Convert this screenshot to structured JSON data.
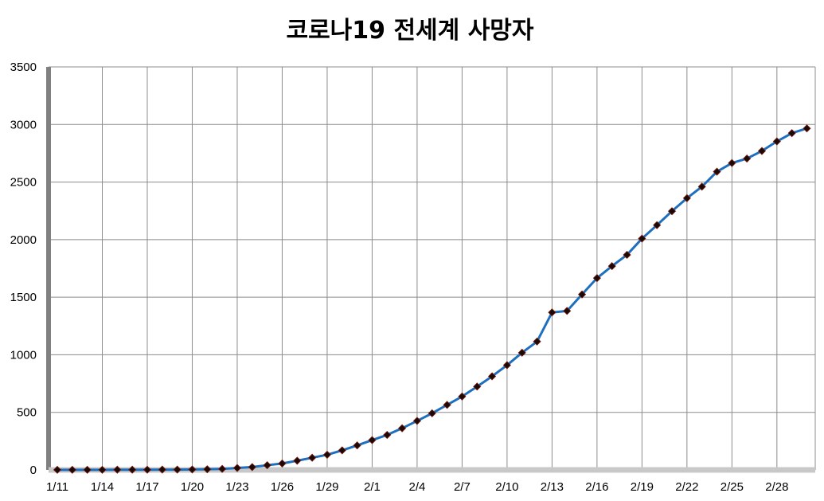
{
  "chart_data": {
    "type": "line",
    "title": "코로나19 전세계 사망자",
    "xlabel": "",
    "ylabel": "",
    "ylim": [
      0,
      3500
    ],
    "yticks": [
      "0",
      "500",
      "1000",
      "1500",
      "2000",
      "2500",
      "3000",
      "3500"
    ],
    "xtick_labels": [
      "1/11",
      "1/14",
      "1/17",
      "1/20",
      "1/23",
      "1/26",
      "1/29",
      "2/1",
      "2/4",
      "2/7",
      "2/10",
      "2/13",
      "2/16",
      "2/19",
      "2/22",
      "2/25",
      "2/28"
    ],
    "grid": true,
    "legend": "none",
    "x": [
      "1/11",
      "1/12",
      "1/13",
      "1/14",
      "1/15",
      "1/16",
      "1/17",
      "1/18",
      "1/19",
      "1/20",
      "1/21",
      "1/22",
      "1/23",
      "1/24",
      "1/25",
      "1/26",
      "1/27",
      "1/28",
      "1/29",
      "1/30",
      "1/31",
      "2/1",
      "2/2",
      "2/3",
      "2/4",
      "2/5",
      "2/6",
      "2/7",
      "2/8",
      "2/9",
      "2/10",
      "2/11",
      "2/12",
      "2/13",
      "2/14",
      "2/15",
      "2/16",
      "2/17",
      "2/18",
      "2/19",
      "2/20",
      "2/21",
      "2/22",
      "2/23",
      "2/24",
      "2/25",
      "2/26",
      "2/27",
      "2/28",
      "2/29",
      "3/1"
    ],
    "series": [
      {
        "color": "#1f6fbf",
        "marker_color": "#1a0a06",
        "values": [
          1,
          1,
          1,
          1,
          2,
          2,
          2,
          3,
          3,
          4,
          6,
          9,
          17,
          25,
          41,
          56,
          80,
          106,
          132,
          170,
          213,
          259,
          304,
          362,
          426,
          492,
          565,
          638,
          724,
          813,
          910,
          1018,
          1115,
          1368,
          1381,
          1524,
          1666,
          1770,
          1868,
          2009,
          2126,
          2247,
          2360,
          2460,
          2590,
          2665,
          2704,
          2770,
          2853,
          2925,
          2966
        ]
      }
    ]
  }
}
